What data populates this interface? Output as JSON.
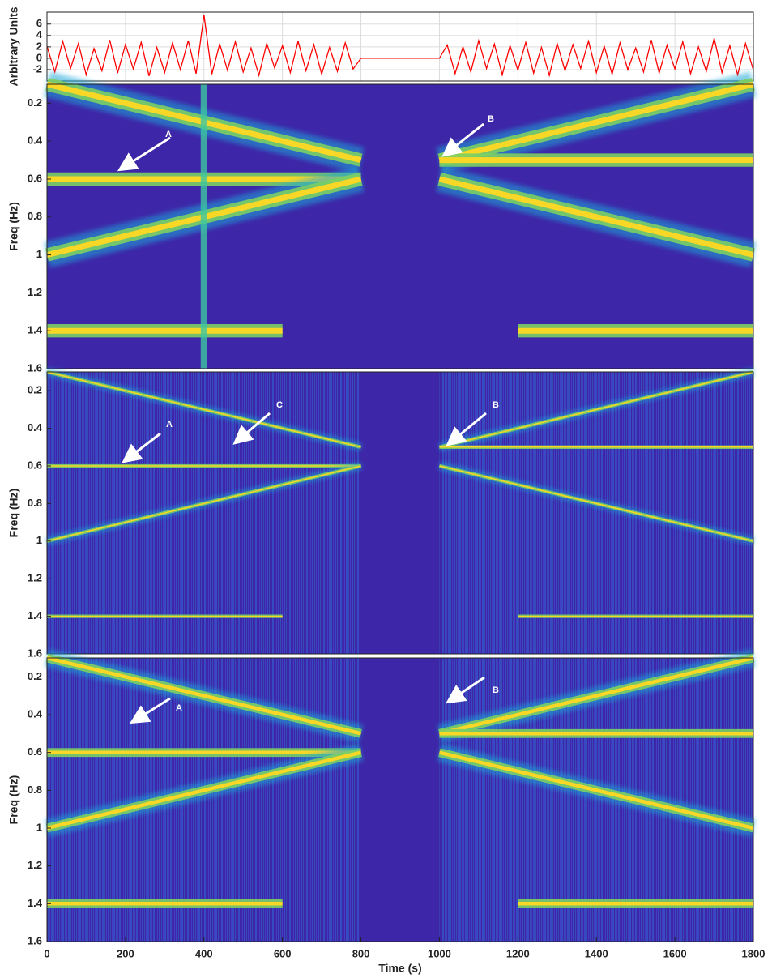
{
  "chart_data": [
    {
      "type": "line",
      "ylabel": "Arbitrary Units",
      "color": "#ff0000",
      "grid": true,
      "xlim": [
        0,
        1800
      ],
      "ylim": [
        -4,
        8.1
      ],
      "yticks": [
        -2,
        0,
        2,
        4,
        6
      ],
      "xticks": [
        0,
        200,
        400,
        600,
        800,
        1000,
        1200,
        1400,
        1600,
        1800
      ],
      "x": [
        0,
        20,
        40,
        60,
        80,
        100,
        120,
        140,
        160,
        180,
        200,
        220,
        240,
        260,
        280,
        300,
        320,
        340,
        360,
        380,
        400,
        420,
        440,
        460,
        480,
        500,
        520,
        540,
        560,
        580,
        600,
        620,
        640,
        660,
        680,
        700,
        720,
        740,
        760,
        780,
        800,
        820,
        840,
        860,
        880,
        900,
        920,
        940,
        960,
        980,
        1000,
        1020,
        1040,
        1060,
        1080,
        1100,
        1120,
        1140,
        1160,
        1180,
        1200,
        1220,
        1240,
        1260,
        1280,
        1300,
        1320,
        1340,
        1360,
        1380,
        1400,
        1420,
        1440,
        1460,
        1480,
        1500,
        1520,
        1540,
        1560,
        1580,
        1600,
        1620,
        1640,
        1660,
        1680,
        1700,
        1720,
        1740,
        1760,
        1780,
        1800
      ],
      "values": [
        2.1,
        -2.4,
        3.0,
        -1.8,
        2.6,
        -2.9,
        1.7,
        -2.2,
        3.2,
        -2.6,
        2.4,
        -1.9,
        2.8,
        -3.1,
        1.9,
        -2.5,
        2.7,
        -2.0,
        3.1,
        -2.7,
        7.6,
        -2.8,
        2.5,
        -2.1,
        2.9,
        -2.4,
        1.8,
        -3.0,
        2.6,
        -1.7,
        2.2,
        -2.5,
        3.0,
        -2.2,
        2.4,
        -2.8,
        1.9,
        -2.3,
        2.7,
        -1.9,
        0,
        0,
        0,
        0,
        0,
        0,
        0,
        0,
        0,
        0,
        0,
        2.3,
        -2.7,
        2.0,
        -2.4,
        3.1,
        -1.8,
        2.5,
        -2.9,
        2.2,
        -2.1,
        2.8,
        -2.6,
        1.9,
        -3.0,
        2.6,
        -2.2,
        2.4,
        -1.8,
        3.0,
        -2.5,
        2.1,
        -2.8,
        2.7,
        -2.0,
        1.8,
        -2.4,
        3.2,
        -2.6,
        2.3,
        -1.9,
        2.9,
        -2.7,
        2.0,
        -2.3,
        3.5,
        -2.5,
        2.2,
        -2.9,
        2.6,
        -2.1
      ]
    },
    {
      "type": "spectrogram",
      "ylabel": "Freq (Hz)",
      "background": "#3e26a8",
      "color": "#f9d726",
      "textured": false,
      "xlim": [
        0,
        1800
      ],
      "ylim": [
        0.1,
        1.6
      ],
      "y_reversed": true,
      "yticks": [
        0.2,
        0.4,
        0.6,
        0.8,
        1,
        1.2,
        1.4,
        1.6
      ],
      "gap": [
        800,
        1000
      ],
      "tracks": [
        {
          "x": [
            0,
            800
          ],
          "values": [
            0.1,
            0.5
          ]
        },
        {
          "x": [
            0,
            800
          ],
          "values": [
            0.6,
            0.6
          ]
        },
        {
          "x": [
            0,
            800
          ],
          "values": [
            1.0,
            0.6
          ]
        },
        {
          "x": [
            0,
            600
          ],
          "values": [
            1.4,
            1.4
          ]
        },
        {
          "x": [
            1000,
            1800
          ],
          "values": [
            0.5,
            0.1
          ]
        },
        {
          "x": [
            1000,
            1800
          ],
          "values": [
            0.5,
            0.5
          ]
        },
        {
          "x": [
            1000,
            1800
          ],
          "values": [
            0.6,
            1.0
          ]
        },
        {
          "x": [
            1200,
            1800
          ],
          "values": [
            1.4,
            1.4
          ]
        },
        {
          "x": [
            400,
            400
          ],
          "values": [
            0.1,
            1.6
          ]
        }
      ],
      "annotations": [
        "A",
        "B"
      ]
    },
    {
      "type": "spectrogram",
      "ylabel": "Freq (Hz)",
      "background": "#3e26a8",
      "color": "#f9d726",
      "textured": true,
      "xlim": [
        0,
        1800
      ],
      "ylim": [
        0.1,
        1.6
      ],
      "y_reversed": true,
      "yticks": [
        0.2,
        0.4,
        0.6,
        0.8,
        1,
        1.2,
        1.4,
        1.6
      ],
      "gap": [
        800,
        1000
      ],
      "tracks": [
        {
          "x": [
            0,
            800
          ],
          "values": [
            0.1,
            0.5
          ]
        },
        {
          "x": [
            0,
            800
          ],
          "values": [
            0.6,
            0.6
          ]
        },
        {
          "x": [
            0,
            800
          ],
          "values": [
            1.0,
            0.6
          ]
        },
        {
          "x": [
            0,
            600
          ],
          "values": [
            1.4,
            1.4
          ]
        },
        {
          "x": [
            1000,
            1800
          ],
          "values": [
            0.5,
            0.1
          ]
        },
        {
          "x": [
            1000,
            1800
          ],
          "values": [
            0.5,
            0.5
          ]
        },
        {
          "x": [
            1000,
            1800
          ],
          "values": [
            0.6,
            1.0
          ]
        },
        {
          "x": [
            1200,
            1800
          ],
          "values": [
            1.4,
            1.4
          ]
        }
      ],
      "annotations": [
        "A",
        "C",
        "B"
      ]
    },
    {
      "type": "spectrogram",
      "ylabel": "Freq (Hz)",
      "xlabel": "Time (s)",
      "background": "#3e26a8",
      "color": "#f9d726",
      "textured": true,
      "xlim": [
        0,
        1800
      ],
      "ylim": [
        0.1,
        1.6
      ],
      "y_reversed": true,
      "yticks": [
        0.2,
        0.4,
        0.6,
        0.8,
        1,
        1.2,
        1.4,
        1.6
      ],
      "xticks": [
        0,
        200,
        400,
        600,
        800,
        1000,
        1200,
        1400,
        1600,
        1800
      ],
      "gap": [
        800,
        1000
      ],
      "tracks": [
        {
          "x": [
            0,
            800
          ],
          "values": [
            0.1,
            0.5
          ]
        },
        {
          "x": [
            0,
            800
          ],
          "values": [
            0.6,
            0.6
          ]
        },
        {
          "x": [
            0,
            800
          ],
          "values": [
            1.0,
            0.6
          ]
        },
        {
          "x": [
            0,
            600
          ],
          "values": [
            1.4,
            1.4
          ]
        },
        {
          "x": [
            1000,
            1800
          ],
          "values": [
            0.5,
            0.1
          ]
        },
        {
          "x": [
            1000,
            1800
          ],
          "values": [
            0.5,
            0.5
          ]
        },
        {
          "x": [
            1000,
            1800
          ],
          "values": [
            0.6,
            1.0
          ]
        },
        {
          "x": [
            1200,
            1800
          ],
          "values": [
            1.4,
            1.4
          ]
        }
      ],
      "annotations": [
        "A",
        "B"
      ]
    }
  ]
}
